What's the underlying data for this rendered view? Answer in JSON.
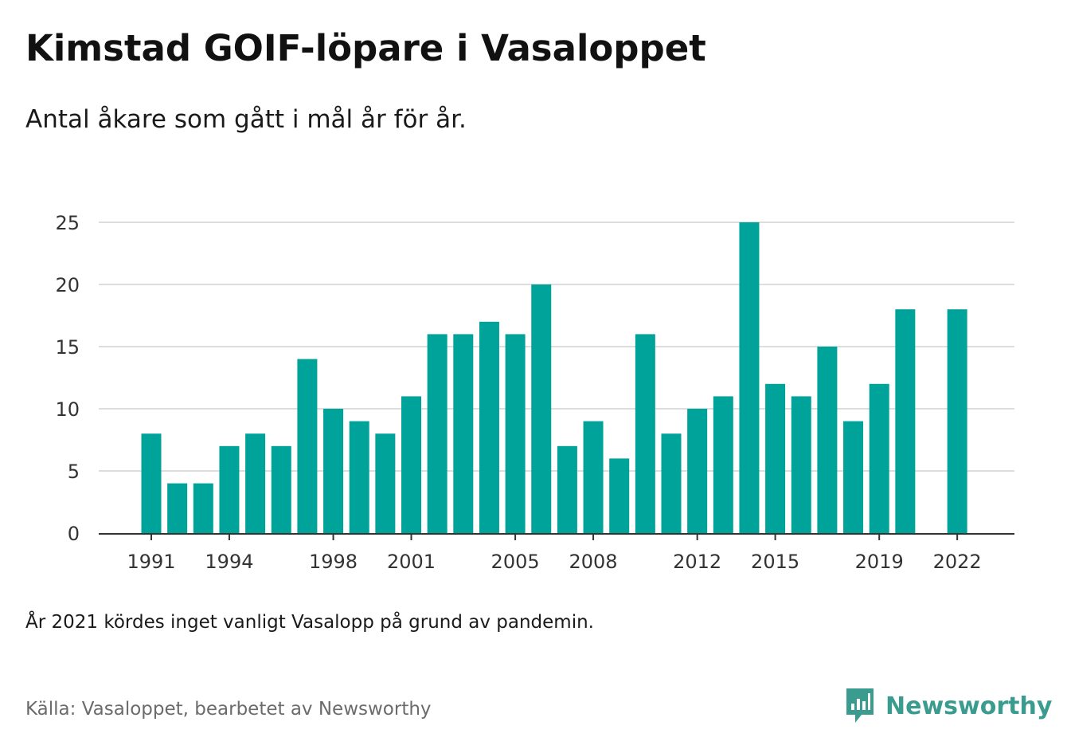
{
  "title": "Kimstad GOIF-löpare i Vasaloppet",
  "subtitle": "Antal åkare som gått i mål år för år.",
  "note": "År 2021 kördes inget vanligt Vasalopp på grund av pandemin.",
  "source": "Källa: Vasaloppet, bearbetet av Newsworthy",
  "brand": {
    "name": "Newsworthy",
    "color": "#3a9b8f",
    "icon": "newsworthy-logo-icon"
  },
  "chart_data": {
    "type": "bar",
    "title": "Kimstad GOIF-löpare i Vasaloppet",
    "subtitle": "Antal åkare som gått i mål år för år.",
    "xlabel": "",
    "ylabel": "",
    "ylim": [
      0,
      25
    ],
    "yticks": [
      0,
      5,
      10,
      15,
      20,
      25
    ],
    "xtick_labels": [
      "1991",
      "1994",
      "1998",
      "2001",
      "2005",
      "2008",
      "2012",
      "2015",
      "2019",
      "2022"
    ],
    "grid": true,
    "bar_color": "#00a39a",
    "categories": [
      1991,
      1992,
      1993,
      1994,
      1995,
      1996,
      1997,
      1998,
      1999,
      2000,
      2001,
      2002,
      2003,
      2004,
      2005,
      2006,
      2007,
      2008,
      2009,
      2010,
      2011,
      2012,
      2013,
      2014,
      2015,
      2016,
      2017,
      2018,
      2019,
      2020,
      2021,
      2022
    ],
    "values": [
      8,
      4,
      4,
      7,
      8,
      7,
      14,
      10,
      9,
      8,
      11,
      16,
      16,
      17,
      16,
      20,
      7,
      9,
      6,
      16,
      8,
      10,
      11,
      25,
      12,
      11,
      15,
      9,
      12,
      18,
      null,
      18
    ]
  }
}
